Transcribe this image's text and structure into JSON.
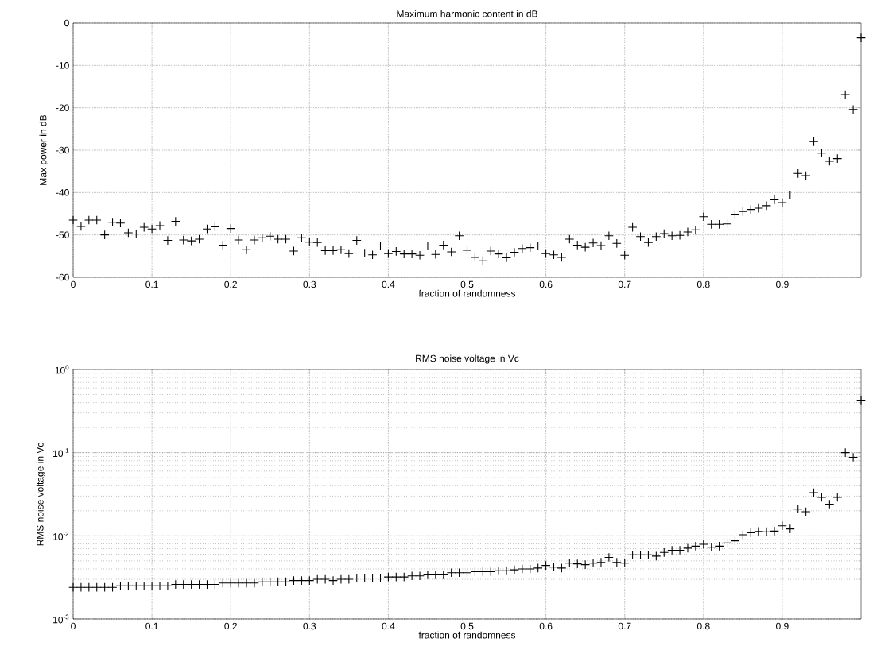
{
  "chart_data": [
    {
      "type": "scatter",
      "title": "Maximum harmonic content in dB",
      "xlabel": "fraction of randomness",
      "ylabel": "Max power in dB",
      "color": "#000000",
      "marker": "cross",
      "grid": true,
      "xlim": [
        0,
        1
      ],
      "ylim": [
        -60,
        0
      ],
      "xticks": [
        0,
        0.1,
        0.2,
        0.3,
        0.4,
        0.5,
        0.6,
        0.7,
        0.8,
        0.9
      ],
      "yticks": [
        -60,
        -50,
        -40,
        -30,
        -20,
        -10,
        0
      ],
      "x": [
        0,
        0.01,
        0.02,
        0.03,
        0.04,
        0.05,
        0.06,
        0.07,
        0.08,
        0.09,
        0.1,
        0.11,
        0.12,
        0.13,
        0.14,
        0.15,
        0.16,
        0.17,
        0.18,
        0.19,
        0.2,
        0.21,
        0.22,
        0.23,
        0.24,
        0.25,
        0.26,
        0.27,
        0.28,
        0.29,
        0.3,
        0.31,
        0.32,
        0.33,
        0.34,
        0.35,
        0.36,
        0.37,
        0.38,
        0.39,
        0.4,
        0.41,
        0.42,
        0.43,
        0.44,
        0.45,
        0.46,
        0.47,
        0.48,
        0.49,
        0.5,
        0.51,
        0.52,
        0.53,
        0.54,
        0.55,
        0.56,
        0.57,
        0.58,
        0.59,
        0.6,
        0.61,
        0.62,
        0.63,
        0.64,
        0.65,
        0.66,
        0.67,
        0.68,
        0.69,
        0.7,
        0.71,
        0.72,
        0.73,
        0.74,
        0.75,
        0.76,
        0.77,
        0.78,
        0.79,
        0.8,
        0.81,
        0.82,
        0.83,
        0.84,
        0.85,
        0.86,
        0.87,
        0.88,
        0.89,
        0.9,
        0.91,
        0.92,
        0.93,
        0.94,
        0.95,
        0.96,
        0.97,
        0.98,
        0.99,
        1
      ],
      "values": [
        -46.5,
        -48,
        -46.5,
        -46.5,
        -50,
        -47,
        -47.2,
        -49.5,
        -49.8,
        -48.2,
        -48.6,
        -47.8,
        -51.3,
        -46.8,
        -51.2,
        -51.4,
        -51,
        -48.6,
        -48.1,
        -52.4,
        -48.5,
        -51.2,
        -53.5,
        -51.2,
        -50.7,
        -50.3,
        -51,
        -51,
        -53.8,
        -50.7,
        -51.7,
        -51.8,
        -53.7,
        -53.7,
        -53.5,
        -54.4,
        -51.3,
        -54.3,
        -54.7,
        -52.6,
        -54.4,
        -53.9,
        -54.5,
        -54.5,
        -54.8,
        -52.6,
        -54.6,
        -52.4,
        -54,
        -50.2,
        -53.6,
        -55.3,
        -56.1,
        -53.8,
        -54.5,
        -55.4,
        -54.1,
        -53.2,
        -53,
        -52.6,
        -54.4,
        -54.7,
        -55.3,
        -51,
        -52.4,
        -52.9,
        -51.9,
        -52.5,
        -50.2,
        -52,
        -54.8,
        -48.2,
        -50.4,
        -51.8,
        -50.4,
        -49.7,
        -50.2,
        -50.1,
        -49.3,
        -48.8,
        -45.7,
        -47.5,
        -47.5,
        -47.4,
        -45.1,
        -44.5,
        -44,
        -43.7,
        -43.1,
        -41.7,
        -42.4,
        -40.6,
        -35.5,
        -36,
        -28,
        -30.7,
        -32.6,
        -32,
        -16.9,
        -20.4,
        -3.5
      ]
    },
    {
      "type": "scatter",
      "title": "RMS noise voltage in Vc",
      "xlabel": "fraction of randomness",
      "ylabel": "RMS noise voltage in Vc",
      "color": "#000000",
      "marker": "cross",
      "grid": true,
      "log": "y",
      "xlim": [
        0,
        1
      ],
      "ylim": [
        0.001,
        1
      ],
      "xticks": [
        0,
        0.1,
        0.2,
        0.3,
        0.4,
        0.5,
        0.6,
        0.7,
        0.8,
        0.9
      ],
      "yticks": [
        {
          "value": 0.001,
          "label": "10$^{-3}$"
        },
        {
          "value": 0.01,
          "label": "10$^{-2}$"
        },
        {
          "value": 0.1,
          "label": "10$^{-1}$"
        },
        {
          "value": 1,
          "label": "10$^{0}$"
        }
      ],
      "x": [
        0,
        0.01,
        0.02,
        0.03,
        0.04,
        0.05,
        0.06,
        0.07,
        0.08,
        0.09,
        0.1,
        0.11,
        0.12,
        0.13,
        0.14,
        0.15,
        0.16,
        0.17,
        0.18,
        0.19,
        0.2,
        0.21,
        0.22,
        0.23,
        0.24,
        0.25,
        0.26,
        0.27,
        0.28,
        0.29,
        0.3,
        0.31,
        0.32,
        0.33,
        0.34,
        0.35,
        0.36,
        0.37,
        0.38,
        0.39,
        0.4,
        0.41,
        0.42,
        0.43,
        0.44,
        0.45,
        0.46,
        0.47,
        0.48,
        0.49,
        0.5,
        0.51,
        0.52,
        0.53,
        0.54,
        0.55,
        0.56,
        0.57,
        0.58,
        0.59,
        0.6,
        0.61,
        0.62,
        0.63,
        0.64,
        0.65,
        0.66,
        0.67,
        0.68,
        0.69,
        0.7,
        0.71,
        0.72,
        0.73,
        0.74,
        0.75,
        0.76,
        0.77,
        0.78,
        0.79,
        0.8,
        0.81,
        0.82,
        0.83,
        0.84,
        0.85,
        0.86,
        0.87,
        0.88,
        0.89,
        0.9,
        0.91,
        0.92,
        0.93,
        0.94,
        0.95,
        0.96,
        0.97,
        0.98,
        0.99,
        1
      ],
      "values": [
        0.0024,
        0.0024,
        0.0024,
        0.0024,
        0.0024,
        0.0024,
        0.0025,
        0.0025,
        0.0025,
        0.0025,
        0.0025,
        0.0025,
        0.0025,
        0.0026,
        0.0026,
        0.0026,
        0.0026,
        0.0026,
        0.0026,
        0.0027,
        0.0027,
        0.0027,
        0.0027,
        0.0027,
        0.0028,
        0.0028,
        0.0028,
        0.0028,
        0.0029,
        0.0029,
        0.0029,
        0.003,
        0.003,
        0.0029,
        0.003,
        0.003,
        0.0031,
        0.0031,
        0.0031,
        0.0031,
        0.0032,
        0.0032,
        0.0032,
        0.0033,
        0.0033,
        0.0034,
        0.0034,
        0.0034,
        0.0036,
        0.0036,
        0.0036,
        0.0037,
        0.0037,
        0.0037,
        0.0038,
        0.0038,
        0.0039,
        0.004,
        0.004,
        0.0041,
        0.0044,
        0.0042,
        0.0041,
        0.0047,
        0.0046,
        0.0045,
        0.0047,
        0.0048,
        0.0055,
        0.0048,
        0.0047,
        0.0059,
        0.0059,
        0.0059,
        0.0057,
        0.0063,
        0.0067,
        0.0067,
        0.0071,
        0.0075,
        0.0079,
        0.0073,
        0.0075,
        0.0082,
        0.0087,
        0.0103,
        0.0109,
        0.0113,
        0.0112,
        0.0114,
        0.0132,
        0.0121,
        0.021,
        0.0195,
        0.033,
        0.029,
        0.024,
        0.029,
        0.1,
        0.088,
        0.42
      ]
    }
  ]
}
